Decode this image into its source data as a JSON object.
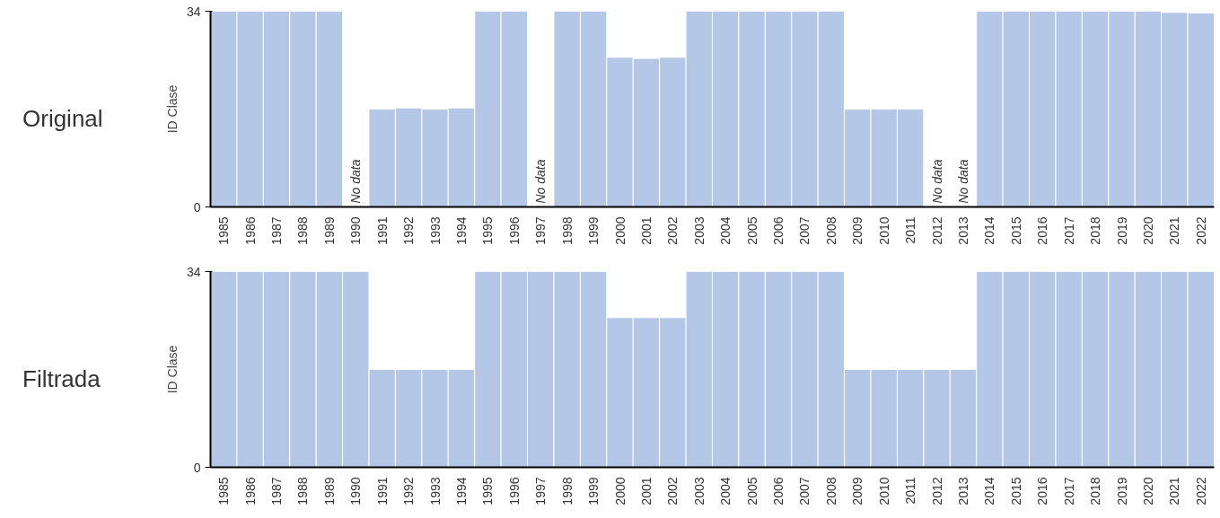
{
  "chart_data": [
    {
      "type": "bar",
      "title": "Original",
      "ylabel": "ID Clase",
      "color": "#b4c7e7",
      "grid": false,
      "ylim": [
        0,
        34
      ],
      "yticks": [
        0,
        34
      ],
      "categories": [
        "1985",
        "1986",
        "1987",
        "1988",
        "1989",
        "1990",
        "1991",
        "1992",
        "1993",
        "1994",
        "1995",
        "1996",
        "1997",
        "1998",
        "1999",
        "2000",
        "2001",
        "2002",
        "2003",
        "2004",
        "2005",
        "2006",
        "2007",
        "2008",
        "2009",
        "2010",
        "2011",
        "2012",
        "2013",
        "2014",
        "2015",
        "2016",
        "2017",
        "2018",
        "2019",
        "2020",
        "2021",
        "2022"
      ],
      "values": [
        34,
        34,
        34,
        34,
        34,
        null,
        17,
        17.2,
        17,
        17.2,
        34,
        34,
        null,
        34,
        34,
        26,
        25.8,
        26,
        34,
        34,
        34,
        34,
        34,
        34,
        17,
        17,
        17,
        null,
        null,
        34,
        34,
        34,
        34,
        34,
        34,
        34,
        33.8,
        33.7
      ],
      "annotations": [
        "No data",
        "No data",
        "No data",
        "No data"
      ]
    },
    {
      "type": "bar",
      "title": "Filtrada",
      "ylabel": "ID Clase",
      "color": "#b4c7e7",
      "grid": false,
      "ylim": [
        0,
        34
      ],
      "yticks": [
        0,
        34
      ],
      "categories": [
        "1985",
        "1986",
        "1987",
        "1988",
        "1989",
        "1990",
        "1991",
        "1992",
        "1993",
        "1994",
        "1995",
        "1996",
        "1997",
        "1998",
        "1999",
        "2000",
        "2001",
        "2002",
        "2003",
        "2004",
        "2005",
        "2006",
        "2007",
        "2008",
        "2009",
        "2010",
        "2011",
        "2012",
        "2013",
        "2014",
        "2015",
        "2016",
        "2017",
        "2018",
        "2019",
        "2020",
        "2021",
        "2022"
      ],
      "values": [
        34,
        34,
        34,
        34,
        34,
        34,
        17,
        17,
        17,
        17,
        34,
        34,
        34,
        34,
        34,
        26,
        26,
        26,
        34,
        34,
        34,
        34,
        34,
        34,
        17,
        17,
        17,
        17,
        17,
        34,
        34,
        34,
        34,
        34,
        34,
        34,
        34,
        34
      ]
    }
  ]
}
